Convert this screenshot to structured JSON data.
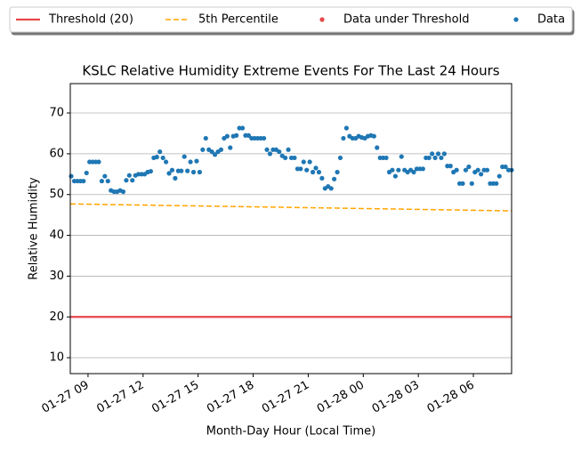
{
  "chart_data": {
    "type": "scatter",
    "title": "KSLC Relative Humidity Extreme Events For The Last 24 Hours",
    "xlabel": "Month-Day Hour (Local Time)",
    "ylabel": "Relative Humidity",
    "xlim": [
      "01-27 08:02",
      "01-28 08:05"
    ],
    "xticks": [
      "01-27 09",
      "01-27 12",
      "01-27 15",
      "01-27 18",
      "01-27 21",
      "01-28 00",
      "01-28 03",
      "01-28 06"
    ],
    "ylim": [
      6.1,
      77.2
    ],
    "yticks": [
      10,
      20,
      30,
      40,
      50,
      60,
      70
    ],
    "grid": "y",
    "legend": "top",
    "series": [
      {
        "name": "Threshold (20)",
        "kind": "line",
        "color": "#e8474a",
        "dash": false,
        "x": [
          "01-27 08:02",
          "01-28 08:05"
        ],
        "values": [
          20,
          20
        ]
      },
      {
        "name": "5th Percentile",
        "kind": "line",
        "color": "#ffa500",
        "dash": true,
        "x": [
          "01-27 08:02",
          "01-28 08:05"
        ],
        "values": [
          47.7,
          46.0
        ]
      },
      {
        "name": "Data under Threshold",
        "kind": "scatter",
        "color": "#e8474a",
        "x": [],
        "values": []
      },
      {
        "name": "Data",
        "kind": "scatter",
        "color": "#1f77b4",
        "x": [
          "01-27 08:05",
          "01-27 08:15",
          "01-27 08:25",
          "01-27 08:35",
          "01-27 08:45",
          "01-27 08:55",
          "01-27 09:05",
          "01-27 09:15",
          "01-27 09:25",
          "01-27 09:35",
          "01-27 09:45",
          "01-27 09:55",
          "01-27 10:05",
          "01-27 10:15",
          "01-27 10:25",
          "01-27 10:35",
          "01-27 10:45",
          "01-27 10:55",
          "01-27 11:05",
          "01-27 11:15",
          "01-27 11:25",
          "01-27 11:35",
          "01-27 11:45",
          "01-27 11:55",
          "01-27 12:05",
          "01-27 12:15",
          "01-27 12:25",
          "01-27 12:35",
          "01-27 12:45",
          "01-27 12:55",
          "01-27 13:05",
          "01-27 13:15",
          "01-27 13:25",
          "01-27 13:35",
          "01-27 13:45",
          "01-27 13:55",
          "01-27 14:05",
          "01-27 14:15",
          "01-27 14:25",
          "01-27 14:35",
          "01-27 14:45",
          "01-27 14:55",
          "01-27 15:05",
          "01-27 15:15",
          "01-27 15:25",
          "01-27 15:35",
          "01-27 15:45",
          "01-27 15:55",
          "01-27 16:05",
          "01-27 16:15",
          "01-27 16:25",
          "01-27 16:35",
          "01-27 16:45",
          "01-27 16:55",
          "01-27 17:05",
          "01-27 17:15",
          "01-27 17:25",
          "01-27 17:35",
          "01-27 17:45",
          "01-27 17:55",
          "01-27 18:05",
          "01-27 18:15",
          "01-27 18:25",
          "01-27 18:35",
          "01-27 18:45",
          "01-27 18:55",
          "01-27 19:05",
          "01-27 19:15",
          "01-27 19:25",
          "01-27 19:35",
          "01-27 19:45",
          "01-27 19:55",
          "01-27 20:05",
          "01-27 20:15",
          "01-27 20:25",
          "01-27 20:35",
          "01-27 20:45",
          "01-27 20:55",
          "01-27 21:05",
          "01-27 21:15",
          "01-27 21:25",
          "01-27 21:35",
          "01-27 21:45",
          "01-27 21:55",
          "01-27 22:05",
          "01-27 22:15",
          "01-27 22:25",
          "01-27 22:35",
          "01-27 22:45",
          "01-27 22:55",
          "01-27 23:05",
          "01-27 23:15",
          "01-27 23:25",
          "01-27 23:35",
          "01-27 23:45",
          "01-27 23:55",
          "01-28 00:05",
          "01-28 00:15",
          "01-28 00:25",
          "01-28 00:35",
          "01-28 00:45",
          "01-28 00:55",
          "01-28 01:05",
          "01-28 01:15",
          "01-28 01:25",
          "01-28 01:35",
          "01-28 01:45",
          "01-28 01:55",
          "01-28 02:05",
          "01-28 02:15",
          "01-28 02:25",
          "01-28 02:35",
          "01-28 02:45",
          "01-28 02:55",
          "01-28 03:05",
          "01-28 03:15",
          "01-28 03:25",
          "01-28 03:35",
          "01-28 03:45",
          "01-28 03:55",
          "01-28 04:05",
          "01-28 04:15",
          "01-28 04:25",
          "01-28 04:35",
          "01-28 04:45",
          "01-28 04:55",
          "01-28 05:05",
          "01-28 05:15",
          "01-28 05:25",
          "01-28 05:35",
          "01-28 05:45",
          "01-28 05:55",
          "01-28 06:05",
          "01-28 06:15",
          "01-28 06:25",
          "01-28 06:35",
          "01-28 06:45",
          "01-28 06:55",
          "01-28 07:05",
          "01-28 07:15",
          "01-28 07:25",
          "01-28 07:35",
          "01-28 07:45",
          "01-28 07:55",
          "01-28 08:05"
        ],
        "values": [
          54.5,
          53.3,
          53.3,
          53.3,
          53.3,
          55.3,
          58.0,
          58.0,
          58.0,
          58.0,
          53.3,
          54.5,
          53.3,
          51.0,
          50.7,
          50.7,
          51.0,
          50.7,
          53.5,
          54.7,
          53.5,
          54.7,
          55.0,
          55.0,
          55.0,
          55.5,
          55.7,
          59.0,
          59.2,
          60.5,
          59.0,
          58.0,
          55.2,
          56.0,
          54.0,
          55.8,
          55.8,
          59.3,
          55.8,
          58.0,
          55.5,
          58.2,
          55.5,
          61.0,
          63.8,
          61.0,
          60.5,
          59.8,
          60.5,
          61.0,
          63.8,
          64.3,
          61.5,
          64.3,
          64.5,
          66.3,
          66.3,
          64.5,
          64.5,
          63.8,
          63.8,
          63.8,
          63.8,
          63.8,
          61.0,
          60.0,
          61.0,
          61.0,
          60.5,
          59.5,
          59.0,
          61.0,
          59.0,
          59.0,
          56.3,
          56.3,
          58.0,
          56.0,
          58.0,
          55.5,
          56.5,
          55.5,
          54.0,
          51.5,
          52.0,
          51.5,
          53.8,
          55.5,
          59.0,
          63.8,
          66.3,
          64.3,
          63.8,
          63.8,
          64.3,
          64.0,
          63.8,
          64.3,
          64.5,
          64.3,
          61.5,
          59.0,
          59.0,
          59.0,
          55.5,
          56.0,
          54.5,
          56.0,
          59.3,
          56.0,
          55.5,
          56.0,
          55.5,
          56.3,
          56.3,
          56.3,
          59.0,
          59.0,
          60.0,
          59.0,
          60.0,
          59.0,
          60.0,
          57.0,
          57.0,
          55.5,
          56.0,
          52.7,
          52.7,
          56.0,
          56.8,
          52.7,
          55.5,
          56.0,
          55.0,
          56.0,
          56.0,
          52.7,
          52.7,
          52.7,
          54.5,
          56.8,
          56.8,
          56.0,
          56.0
        ]
      }
    ]
  }
}
